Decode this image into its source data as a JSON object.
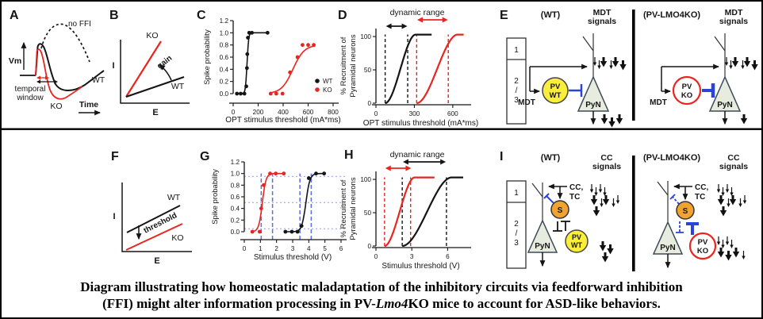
{
  "colors": {
    "black": "#151515",
    "red": "#e8251f",
    "blue": "#2b43d8",
    "blue_dashed": "#5a6ee8",
    "blue_dotted": "#9aa8ef",
    "pv_fill": "#f8ee3b",
    "s_fill": "#f0a330",
    "pyn_fill": "#e7ecdf",
    "pyn_stroke": "#3b4a57"
  },
  "panels": {
    "a": "A",
    "b": "B",
    "c": "C",
    "d": "D",
    "e": "E",
    "f": "F",
    "g": "G",
    "h": "H",
    "i": "I"
  },
  "panelA": {
    "vm": "Vm",
    "time": "Time",
    "no_ffi": "no FFI",
    "temporal": "temporal",
    "window": "window",
    "ko": "KO",
    "wt": "WT"
  },
  "panelB": {
    "i": "I",
    "e": "E",
    "ko": "KO",
    "wt": "WT",
    "gain": "gain"
  },
  "panelF": {
    "i": "I",
    "e": "E",
    "ko": "KO",
    "wt": "WT",
    "threshold": "threshold"
  },
  "circuitE": {
    "wt_title": "(WT)",
    "ko_title": "(PV-LMO4KO)",
    "signals_line1": "MDT",
    "signals_line2": "signals",
    "layer1": "1",
    "layer2": "2",
    "layer_slash": "/",
    "layer3": "3",
    "mdt": "MDT",
    "pv": "PV",
    "wt": "WT",
    "ko": "KO",
    "pyn": "PyN"
  },
  "circuitI": {
    "wt_title": "(WT)",
    "ko_title": "(PV-LMO4KO)",
    "signals_line1": "CC",
    "signals_line2": "signals",
    "layer1": "1",
    "layer2": "2",
    "layer_slash": "/",
    "layer3": "3",
    "cc_line1": "CC,",
    "cc_line2": "TC",
    "s": "S",
    "pv": "PV",
    "wt": "WT",
    "ko": "KO",
    "pyn": "PyN"
  },
  "arrows": {
    "e_in": [
      "ssLsLL"
    ],
    "e_wt_out": [
      "LLL"
    ],
    "e_ko_out": [
      "L"
    ],
    "i_in": [
      "ssss",
      "LsLss",
      "L"
    ],
    "i_wt_out": [
      "LL",
      "L"
    ],
    "i_ko_out": [
      "ssss",
      "LLLs"
    ]
  },
  "caption": {
    "line1": "Diagram illustrating how homeostatic maladaptation of the inhibitory circuits via feedforward inhibition",
    "line2_pre": "(FFI) might alter information processing in PV-",
    "line2_italic": "Lmo4",
    "line2_post": "KO mice to account for ASD-like behaviors."
  },
  "chart_data": [
    {
      "id": "C",
      "type": "spike",
      "xlabel": "OPT stimulus threshold (mA*ms)",
      "ylabel": "Spike probability",
      "xlim": [
        0,
        800
      ],
      "ylim": [
        0,
        1.2
      ],
      "xticks": [
        0,
        200,
        400,
        600,
        800
      ],
      "yticks": [
        0,
        0.2,
        0.4,
        0.6,
        0.8,
        1,
        1.2
      ],
      "ytick_decimals": 1,
      "series": [
        {
          "name": "WT",
          "color": "#151515",
          "points": [
            [
              30,
              0
            ],
            [
              60,
              0
            ],
            [
              90,
              0
            ],
            [
              105,
              0.12
            ],
            [
              110,
              0.42
            ],
            [
              113,
              0.65
            ],
            [
              118,
              0.92
            ],
            [
              128,
              1
            ],
            [
              150,
              1
            ],
            [
              275,
              1
            ]
          ],
          "curve": {
            "x0": 111,
            "k": 0.16,
            "ymax": 1,
            "range": [
              25,
              285
            ]
          }
        },
        {
          "name": "KO",
          "color": "#e8251f",
          "points": [
            [
              300,
              0
            ],
            [
              345,
              0
            ],
            [
              395,
              0
            ],
            [
              455,
              0.35
            ],
            [
              515,
              0.6
            ],
            [
              555,
              0.8
            ],
            [
              600,
              0.8
            ],
            [
              645,
              0.8
            ]
          ],
          "curve": {
            "x0": 478,
            "k": 0.022,
            "ymax": 0.8,
            "range": [
              295,
              655
            ]
          }
        }
      ],
      "legend": true
    },
    {
      "id": "G",
      "type": "spike",
      "xlabel": "Stimulus threshold (V)",
      "ylabel": "Spike probability",
      "xlim": [
        0,
        6
      ],
      "ylim": [
        0,
        1.2
      ],
      "xticks": [
        0,
        1,
        2,
        3,
        4,
        5,
        6
      ],
      "yticks": [
        0,
        0.2,
        0.4,
        0.6,
        0.8,
        1,
        1.2
      ],
      "ytick_decimals": 1,
      "series": [
        {
          "name": "KO",
          "color": "#e8251f",
          "points": [
            [
              0.5,
              0
            ],
            [
              0.95,
              0
            ],
            [
              1.05,
              0.4
            ],
            [
              1.2,
              0.8
            ],
            [
              1.6,
              1
            ],
            [
              1.95,
              1
            ],
            [
              2.45,
              1
            ]
          ],
          "curve": {
            "x0": 1.12,
            "k": 9,
            "ymax": 1,
            "range": [
              0.45,
              2.5
            ]
          }
        },
        {
          "name": "WT",
          "color": "#151515",
          "points": [
            [
              2.55,
              0
            ],
            [
              2.95,
              0
            ],
            [
              3.3,
              0
            ],
            [
              3.55,
              0.1
            ],
            [
              4,
              0.92
            ],
            [
              4.45,
              1
            ],
            [
              4.95,
              1
            ]
          ],
          "curve": {
            "x0": 3.82,
            "k": 8,
            "ymax": 1,
            "range": [
              2.5,
              5
            ]
          }
        }
      ],
      "guide_top": 1,
      "guides": [
        {
          "type": "v",
          "at": 1.05,
          "color": "#5a6ee8",
          "dash": "5,3"
        },
        {
          "type": "v",
          "at": 1.75,
          "color": "#5a6ee8",
          "dash": "5,3"
        },
        {
          "type": "v",
          "at": 3.45,
          "color": "#5a6ee8",
          "dash": "5,3"
        },
        {
          "type": "v",
          "at": 4.15,
          "color": "#5a6ee8",
          "dash": "5,3"
        },
        {
          "type": "h",
          "at": 0.05,
          "color": "#9aa8ef",
          "dash": "2,3"
        },
        {
          "type": "h",
          "at": 0.5,
          "color": "#9aa8ef",
          "dash": "2,3"
        },
        {
          "type": "h",
          "at": 0.95,
          "color": "#9aa8ef",
          "dash": "2,3"
        }
      ]
    },
    {
      "id": "D",
      "type": "recruit",
      "title": "dynamic range",
      "xlabel": "OPT stimulus threshold (mA*ms)",
      "ylabel1": "% Recruitment of",
      "ylabel2": "Pyramidal neurons",
      "xlim": [
        0,
        700
      ],
      "ylim": [
        0,
        112
      ],
      "xticks": [
        0,
        300,
        600
      ],
      "yticks": [
        0,
        50,
        100
      ],
      "series": [
        {
          "name": "WT",
          "color": "#151515",
          "x0": 72,
          "x1": 310,
          "xend": 435,
          "ymax": 103
        },
        {
          "name": "KO",
          "color": "#e8251f",
          "x0": 318,
          "x1": 638,
          "xend": 685,
          "ymax": 103
        }
      ],
      "guides": [
        {
          "at": 72,
          "color": "#151515"
        },
        {
          "at": 248,
          "color": "#151515"
        },
        {
          "at": 318,
          "color": "#e8251f"
        },
        {
          "at": 565,
          "color": "#e8251f"
        }
      ],
      "range_arrows": [
        {
          "x1": 78,
          "x2": 245,
          "color": "#151515"
        },
        {
          "x1": 322,
          "x2": 562,
          "color": "#e8251f"
        }
      ]
    },
    {
      "id": "H",
      "type": "recruit",
      "title": "dynamic range",
      "xlabel": "Stimulus threshold (V)",
      "ylabel1": "% Recruitment of",
      "ylabel2": "Pyramidal neurons",
      "xlim": [
        0,
        7.5
      ],
      "ylim": [
        0,
        112
      ],
      "xticks": [
        0,
        3,
        6
      ],
      "yticks": [
        0,
        50,
        100
      ],
      "series": [
        {
          "name": "KO",
          "color": "#e8251f",
          "x0": 0.72,
          "x1": 3.25,
          "xend": 4.9,
          "ymax": 103
        },
        {
          "name": "WT",
          "color": "#151515",
          "x0": 2.2,
          "x1": 6.35,
          "xend": 7.3,
          "ymax": 103
        }
      ],
      "guides": [
        {
          "at": 0.72,
          "color": "#e8251f"
        },
        {
          "at": 2.9,
          "color": "#e8251f"
        },
        {
          "at": 2.2,
          "color": "#151515"
        },
        {
          "at": 5.9,
          "color": "#151515"
        }
      ],
      "range_arrows": [
        {
          "x1": 0.78,
          "x2": 2.95,
          "color": "#e8251f"
        },
        {
          "x1": 2.25,
          "x2": 5.85,
          "color": "#151515"
        }
      ]
    }
  ]
}
